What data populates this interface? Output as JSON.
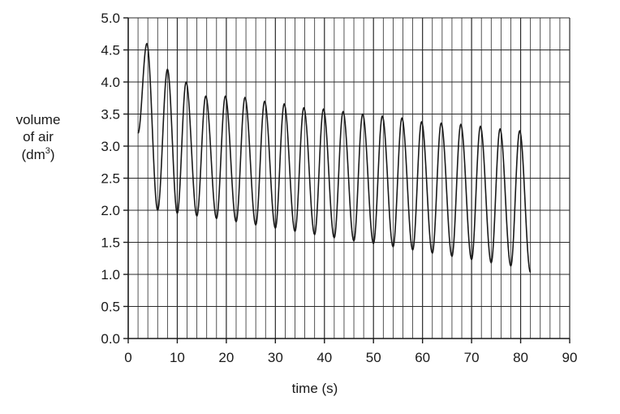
{
  "chart_data": {
    "type": "line",
    "title": "",
    "xlabel": "time (s)",
    "ylabel": {
      "line1": "volume",
      "line2": "of air",
      "line3_prefix": "(dm",
      "line3_sup": "3",
      "line3_suffix": ")"
    },
    "xlim": [
      0,
      90
    ],
    "ylim": [
      0.0,
      5.0
    ],
    "x_ticks": [
      "0",
      "10",
      "20",
      "30",
      "40",
      "50",
      "60",
      "70",
      "80",
      "90"
    ],
    "y_ticks": [
      "0.0",
      "0.5",
      "1.0",
      "1.5",
      "2.0",
      "2.5",
      "3.0",
      "3.5",
      "4.0",
      "4.5",
      "5.0"
    ],
    "grid": true,
    "minor_x_grid_step": 2,
    "series": [
      {
        "peaks": [
          [
            3.8,
            4.6
          ],
          [
            8.0,
            4.2
          ],
          [
            11.8,
            4.0
          ],
          [
            15.8,
            3.78
          ],
          [
            19.8,
            3.78
          ],
          [
            23.8,
            3.76
          ],
          [
            27.8,
            3.7
          ],
          [
            31.8,
            3.66
          ],
          [
            35.8,
            3.6
          ],
          [
            39.8,
            3.58
          ],
          [
            43.8,
            3.54
          ],
          [
            47.8,
            3.5
          ],
          [
            51.8,
            3.47
          ],
          [
            55.8,
            3.44
          ],
          [
            59.8,
            3.38
          ],
          [
            63.8,
            3.36
          ],
          [
            67.8,
            3.34
          ],
          [
            71.8,
            3.31
          ],
          [
            75.8,
            3.27
          ],
          [
            79.8,
            3.24
          ]
        ],
        "troughs": [
          [
            6.0,
            2.0
          ],
          [
            10.0,
            1.95
          ],
          [
            14.0,
            1.91
          ],
          [
            18.0,
            1.87
          ],
          [
            22.0,
            1.82
          ],
          [
            26.0,
            1.77
          ],
          [
            30.0,
            1.72
          ],
          [
            34.0,
            1.67
          ],
          [
            38.0,
            1.62
          ],
          [
            42.0,
            1.57
          ],
          [
            46.0,
            1.52
          ],
          [
            50.0,
            1.48
          ],
          [
            54.0,
            1.43
          ],
          [
            58.0,
            1.38
          ],
          [
            62.0,
            1.33
          ],
          [
            66.0,
            1.28
          ],
          [
            70.0,
            1.23
          ],
          [
            74.0,
            1.18
          ],
          [
            78.0,
            1.13
          ]
        ],
        "start": [
          2.0,
          3.2
        ],
        "end": [
          82.0,
          1.03
        ]
      }
    ]
  }
}
